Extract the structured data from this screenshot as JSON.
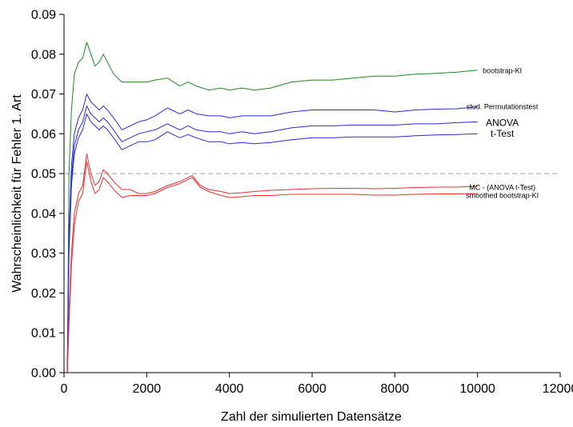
{
  "chart_data": {
    "type": "line",
    "title": "",
    "xlabel": "Zahl der simulierten Datensätze",
    "ylabel": "Wahrscheinlichkeit für Fehler 1. Art",
    "xlim": [
      0,
      12000
    ],
    "ylim": [
      0,
      0.09
    ],
    "x_ticks": [
      "0",
      "2000",
      "4000",
      "6000",
      "8000",
      "10000",
      "12000"
    ],
    "y_ticks": [
      "0.00",
      "0.01",
      "0.02",
      "0.03",
      "0.04",
      "0.05",
      "0.06",
      "0.07",
      "0.08",
      "0.09"
    ],
    "grid": false,
    "reference_line": {
      "y": 0.05,
      "style": "dashed",
      "color": "#9e9e9e"
    },
    "annotations": [
      {
        "text": "bootstrap-KI",
        "x": 10600,
        "y": 0.0758
      },
      {
        "text": "stud. Permutationstest",
        "x": 10600,
        "y": 0.0668
      },
      {
        "text": "ANOVA",
        "x": 10600,
        "y": 0.0628
      },
      {
        "text": "t-Test",
        "x": 10600,
        "y": 0.0601
      },
      {
        "text": "MC - (ANOVA  t-Test)",
        "x": 10600,
        "y": 0.0465
      },
      {
        "text": "smoothed bootstrap-KI",
        "x": 10600,
        "y": 0.0445
      }
    ],
    "series": [
      {
        "color": "#1a8a1a",
        "points": [
          [
            80,
            0.0
          ],
          [
            120,
            0.05
          ],
          [
            180,
            0.066
          ],
          [
            250,
            0.075
          ],
          [
            350,
            0.078
          ],
          [
            450,
            0.079
          ],
          [
            550,
            0.083
          ],
          [
            650,
            0.08
          ],
          [
            750,
            0.077
          ],
          [
            850,
            0.078
          ],
          [
            950,
            0.08
          ],
          [
            1050,
            0.078
          ],
          [
            1200,
            0.075
          ],
          [
            1400,
            0.073
          ],
          [
            1600,
            0.073
          ],
          [
            1800,
            0.073
          ],
          [
            2000,
            0.073
          ],
          [
            2200,
            0.0735
          ],
          [
            2500,
            0.074
          ],
          [
            2800,
            0.072
          ],
          [
            3000,
            0.073
          ],
          [
            3200,
            0.072
          ],
          [
            3500,
            0.071
          ],
          [
            3800,
            0.0715
          ],
          [
            4000,
            0.071
          ],
          [
            4300,
            0.0715
          ],
          [
            4600,
            0.071
          ],
          [
            5000,
            0.0715
          ],
          [
            5500,
            0.073
          ],
          [
            6000,
            0.0735
          ],
          [
            6500,
            0.0735
          ],
          [
            7000,
            0.074
          ],
          [
            7500,
            0.0745
          ],
          [
            8000,
            0.0745
          ],
          [
            8500,
            0.075
          ],
          [
            9000,
            0.0752
          ],
          [
            9500,
            0.0755
          ],
          [
            10000,
            0.076
          ]
        ]
      },
      {
        "color": "#2a2adc",
        "points": [
          [
            80,
            0.0
          ],
          [
            120,
            0.035
          ],
          [
            180,
            0.052
          ],
          [
            250,
            0.06
          ],
          [
            350,
            0.064
          ],
          [
            450,
            0.066
          ],
          [
            550,
            0.07
          ],
          [
            650,
            0.068
          ],
          [
            750,
            0.067
          ],
          [
            850,
            0.066
          ],
          [
            950,
            0.067
          ],
          [
            1050,
            0.066
          ],
          [
            1200,
            0.064
          ],
          [
            1400,
            0.061
          ],
          [
            1600,
            0.062
          ],
          [
            1800,
            0.063
          ],
          [
            2000,
            0.0635
          ],
          [
            2200,
            0.0645
          ],
          [
            2500,
            0.0665
          ],
          [
            2800,
            0.065
          ],
          [
            3000,
            0.066
          ],
          [
            3200,
            0.065
          ],
          [
            3500,
            0.0645
          ],
          [
            3800,
            0.0645
          ],
          [
            4000,
            0.064
          ],
          [
            4300,
            0.0645
          ],
          [
            4600,
            0.0645
          ],
          [
            5000,
            0.0645
          ],
          [
            5500,
            0.0655
          ],
          [
            6000,
            0.066
          ],
          [
            6500,
            0.066
          ],
          [
            7000,
            0.066
          ],
          [
            7500,
            0.066
          ],
          [
            8000,
            0.0655
          ],
          [
            8500,
            0.066
          ],
          [
            9000,
            0.0662
          ],
          [
            9500,
            0.0663
          ],
          [
            10000,
            0.0668
          ]
        ]
      },
      {
        "color": "#2a2adc",
        "points": [
          [
            80,
            0.0
          ],
          [
            120,
            0.032
          ],
          [
            180,
            0.049
          ],
          [
            250,
            0.057
          ],
          [
            350,
            0.061
          ],
          [
            450,
            0.063
          ],
          [
            550,
            0.067
          ],
          [
            650,
            0.065
          ],
          [
            750,
            0.064
          ],
          [
            850,
            0.063
          ],
          [
            950,
            0.064
          ],
          [
            1050,
            0.063
          ],
          [
            1200,
            0.061
          ],
          [
            1400,
            0.058
          ],
          [
            1600,
            0.059
          ],
          [
            1800,
            0.06
          ],
          [
            2000,
            0.0605
          ],
          [
            2200,
            0.061
          ],
          [
            2500,
            0.0625
          ],
          [
            2800,
            0.061
          ],
          [
            3000,
            0.062
          ],
          [
            3200,
            0.061
          ],
          [
            3500,
            0.0605
          ],
          [
            3800,
            0.0605
          ],
          [
            4000,
            0.06
          ],
          [
            4300,
            0.0605
          ],
          [
            4600,
            0.06
          ],
          [
            5000,
            0.0605
          ],
          [
            5500,
            0.0615
          ],
          [
            6000,
            0.062
          ],
          [
            6500,
            0.062
          ],
          [
            7000,
            0.0622
          ],
          [
            7500,
            0.0622
          ],
          [
            8000,
            0.0622
          ],
          [
            8500,
            0.0625
          ],
          [
            9000,
            0.0625
          ],
          [
            9500,
            0.0628
          ],
          [
            10000,
            0.063
          ]
        ]
      },
      {
        "color": "#2a2adc",
        "points": [
          [
            80,
            0.0
          ],
          [
            120,
            0.03
          ],
          [
            180,
            0.047
          ],
          [
            250,
            0.055
          ],
          [
            350,
            0.059
          ],
          [
            450,
            0.061
          ],
          [
            550,
            0.065
          ],
          [
            650,
            0.063
          ],
          [
            750,
            0.062
          ],
          [
            850,
            0.061
          ],
          [
            950,
            0.062
          ],
          [
            1050,
            0.061
          ],
          [
            1200,
            0.059
          ],
          [
            1400,
            0.056
          ],
          [
            1600,
            0.057
          ],
          [
            1800,
            0.058
          ],
          [
            2000,
            0.058
          ],
          [
            2200,
            0.0585
          ],
          [
            2500,
            0.0605
          ],
          [
            2800,
            0.059
          ],
          [
            3000,
            0.0598
          ],
          [
            3200,
            0.059
          ],
          [
            3500,
            0.058
          ],
          [
            3800,
            0.058
          ],
          [
            4000,
            0.0575
          ],
          [
            4300,
            0.0578
          ],
          [
            4600,
            0.0575
          ],
          [
            5000,
            0.0578
          ],
          [
            5500,
            0.0585
          ],
          [
            6000,
            0.059
          ],
          [
            6500,
            0.059
          ],
          [
            7000,
            0.0592
          ],
          [
            7500,
            0.0592
          ],
          [
            8000,
            0.0592
          ],
          [
            8500,
            0.0595
          ],
          [
            9000,
            0.0597
          ],
          [
            9500,
            0.0598
          ],
          [
            10000,
            0.06
          ]
        ]
      },
      {
        "color": "#e83030",
        "points": [
          [
            80,
            0.0
          ],
          [
            120,
            0.015
          ],
          [
            180,
            0.03
          ],
          [
            250,
            0.04
          ],
          [
            350,
            0.045
          ],
          [
            450,
            0.047
          ],
          [
            550,
            0.055
          ],
          [
            650,
            0.05
          ],
          [
            750,
            0.047
          ],
          [
            850,
            0.048
          ],
          [
            950,
            0.051
          ],
          [
            1050,
            0.05
          ],
          [
            1200,
            0.048
          ],
          [
            1400,
            0.046
          ],
          [
            1600,
            0.046
          ],
          [
            1800,
            0.045
          ],
          [
            2000,
            0.045
          ],
          [
            2200,
            0.0455
          ],
          [
            2500,
            0.047
          ],
          [
            2800,
            0.048
          ],
          [
            3000,
            0.049
          ],
          [
            3100,
            0.0495
          ],
          [
            3300,
            0.047
          ],
          [
            3500,
            0.046
          ],
          [
            3800,
            0.0455
          ],
          [
            4000,
            0.045
          ],
          [
            4300,
            0.0452
          ],
          [
            4600,
            0.0455
          ],
          [
            5000,
            0.0458
          ],
          [
            5500,
            0.046
          ],
          [
            6000,
            0.0462
          ],
          [
            6500,
            0.0463
          ],
          [
            7000,
            0.0463
          ],
          [
            7500,
            0.0462
          ],
          [
            8000,
            0.0463
          ],
          [
            8500,
            0.0465
          ],
          [
            9000,
            0.0466
          ],
          [
            9500,
            0.0466
          ],
          [
            10000,
            0.0468
          ]
        ]
      },
      {
        "color": "#e83030",
        "points": [
          [
            80,
            0.0
          ],
          [
            120,
            0.012
          ],
          [
            180,
            0.027
          ],
          [
            250,
            0.037
          ],
          [
            350,
            0.043
          ],
          [
            450,
            0.045
          ],
          [
            550,
            0.053
          ],
          [
            650,
            0.048
          ],
          [
            750,
            0.045
          ],
          [
            850,
            0.046
          ],
          [
            950,
            0.049
          ],
          [
            1050,
            0.048
          ],
          [
            1200,
            0.046
          ],
          [
            1400,
            0.044
          ],
          [
            1600,
            0.0445
          ],
          [
            1800,
            0.0445
          ],
          [
            2000,
            0.0445
          ],
          [
            2200,
            0.045
          ],
          [
            2500,
            0.0465
          ],
          [
            2800,
            0.0475
          ],
          [
            3000,
            0.0485
          ],
          [
            3100,
            0.049
          ],
          [
            3300,
            0.0465
          ],
          [
            3500,
            0.0455
          ],
          [
            3800,
            0.0445
          ],
          [
            4000,
            0.044
          ],
          [
            4300,
            0.0442
          ],
          [
            4600,
            0.0445
          ],
          [
            5000,
            0.0445
          ],
          [
            5500,
            0.0448
          ],
          [
            6000,
            0.0448
          ],
          [
            6500,
            0.0448
          ],
          [
            7000,
            0.0448
          ],
          [
            7500,
            0.0446
          ],
          [
            8000,
            0.0446
          ],
          [
            8500,
            0.0448
          ],
          [
            9000,
            0.0449
          ],
          [
            9500,
            0.0449
          ],
          [
            10000,
            0.045
          ]
        ]
      }
    ]
  }
}
